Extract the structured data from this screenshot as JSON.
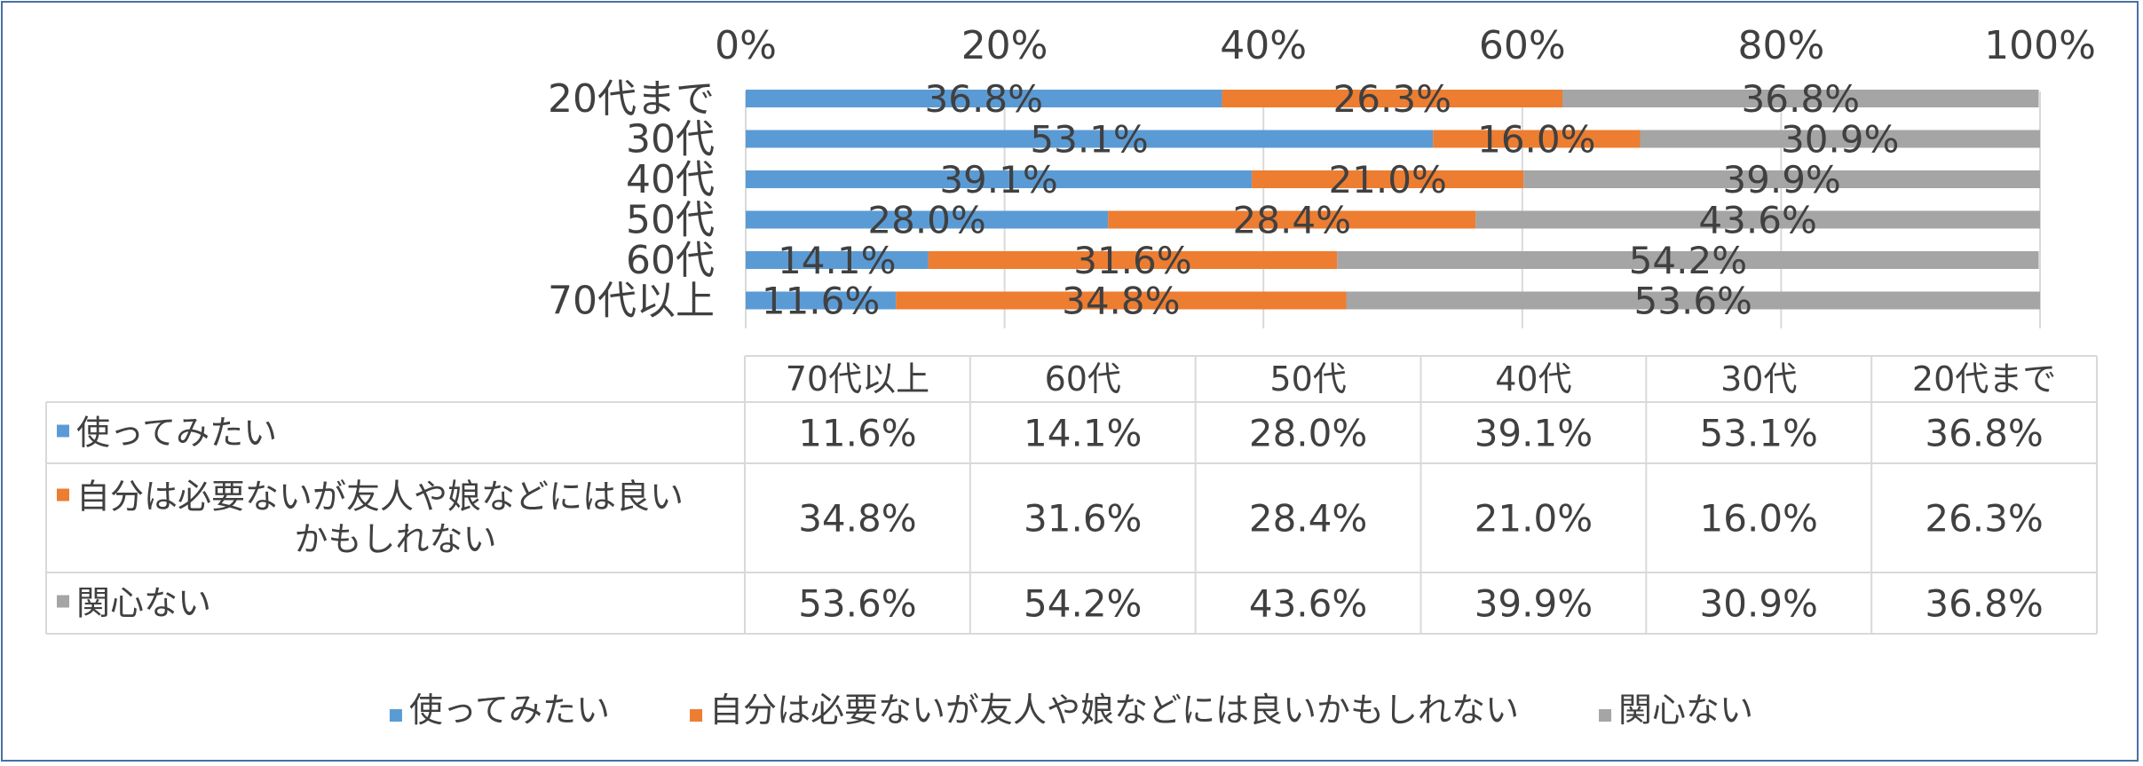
{
  "chart_data": {
    "type": "bar",
    "orientation": "horizontal",
    "stacked": "percent",
    "categories": [
      "20代まで",
      "30代",
      "40代",
      "50代",
      "60代",
      "70代以上"
    ],
    "series": [
      {
        "name": "使ってみたい",
        "color": "#5b9bd5",
        "values": [
          36.8,
          53.1,
          39.1,
          28.0,
          14.1,
          11.6
        ]
      },
      {
        "name": "自分は必要ないが友人や娘などには良いかもしれない",
        "color": "#ed7d31",
        "values": [
          26.3,
          16.0,
          21.0,
          28.4,
          31.6,
          34.8
        ]
      },
      {
        "name": "関心ない",
        "color": "#a5a5a5",
        "values": [
          36.8,
          30.9,
          39.9,
          43.6,
          54.2,
          53.6
        ]
      }
    ],
    "xlim": [
      0,
      100
    ],
    "x_ticks": [
      "0%",
      "20%",
      "40%",
      "60%",
      "80%",
      "100%"
    ],
    "data_labels": true,
    "legend_position": "bottom",
    "data_table": {
      "columns": [
        "70代以上",
        "60代",
        "50代",
        "40代",
        "30代",
        "20代まで"
      ],
      "rows": [
        {
          "label_lines": [
            "使ってみたい"
          ],
          "values": [
            "11.6%",
            "14.1%",
            "28.0%",
            "39.1%",
            "53.1%",
            "36.8%"
          ]
        },
        {
          "label_lines": [
            "自分は必要ないが友人や娘などには良い",
            "かもしれない"
          ],
          "values": [
            "34.8%",
            "31.6%",
            "28.4%",
            "21.0%",
            "16.0%",
            "26.3%"
          ]
        },
        {
          "label_lines": [
            "関心ない"
          ],
          "values": [
            "53.6%",
            "54.2%",
            "43.6%",
            "39.9%",
            "30.9%",
            "36.8%"
          ]
        }
      ]
    }
  }
}
